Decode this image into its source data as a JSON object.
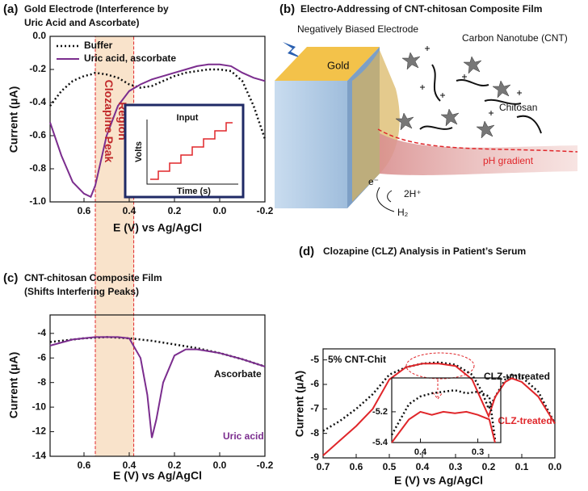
{
  "chart_data": [
    {
      "type": "line",
      "label": "(a)",
      "title": [
        "Gold Electrode (Interference by",
        "Uric Acid and Ascorbate)"
      ],
      "x_label": "E (V) vs Ag/AgCl",
      "y_label": "Current (μA)",
      "xlim": [
        0.75,
        -0.2
      ],
      "xticks": [
        0.6,
        0.4,
        0.2,
        {
          "value": 0,
          "label": "0.0"
        },
        -0.2
      ],
      "ylim": [
        -1.0,
        0.0
      ],
      "yticks": [
        {
          "value": 0,
          "label": "0.0"
        },
        -0.2,
        -0.4,
        -0.6,
        -0.8,
        {
          "value": -1,
          "label": "-1.0"
        }
      ],
      "legend": "upper left",
      "highlight_xrange": [
        0.55,
        0.38
      ],
      "annotation": [
        "Clozapine Peak",
        "Region"
      ],
      "inset": {
        "title": "Input",
        "y_label": "Volts",
        "x_label": "Time (s)"
      },
      "series": [
        {
          "name": "Buffer",
          "color": "#111111",
          "linestyle": "dotted",
          "x": [
            0.75,
            0.7,
            0.65,
            0.6,
            0.57,
            0.55,
            0.5,
            0.45,
            0.4,
            0.35,
            0.3,
            0.25,
            0.2,
            0.15,
            0.1,
            0.05,
            0.0,
            -0.05,
            -0.1,
            -0.15,
            -0.2
          ],
          "values": [
            -0.42,
            -0.33,
            -0.27,
            -0.24,
            -0.23,
            -0.22,
            -0.23,
            -0.25,
            -0.29,
            -0.31,
            -0.3,
            -0.27,
            -0.24,
            -0.22,
            -0.21,
            -0.2,
            -0.2,
            -0.21,
            -0.27,
            -0.42,
            -0.62
          ]
        },
        {
          "name": "Uric acid, ascorbate",
          "color": "#7b2d8e",
          "linestyle": "solid",
          "x": [
            0.75,
            0.7,
            0.65,
            0.6,
            0.57,
            0.55,
            0.5,
            0.45,
            0.4,
            0.35,
            0.3,
            0.25,
            0.2,
            0.15,
            0.1,
            0.05,
            0.0,
            -0.05,
            -0.1,
            -0.15,
            -0.2
          ],
          "values": [
            -0.52,
            -0.72,
            -0.88,
            -0.95,
            -0.97,
            -0.9,
            -0.6,
            -0.42,
            -0.33,
            -0.29,
            -0.26,
            -0.24,
            -0.22,
            -0.2,
            -0.18,
            -0.17,
            -0.17,
            -0.18,
            -0.22,
            -0.25,
            -0.27
          ]
        }
      ]
    },
    {
      "type": "line",
      "label": "(c)",
      "title": [
        "CNT-chitosan Composite Film",
        "(Shifts Interfering Peaks)"
      ],
      "x_label": "E (V) vs Ag/AgCl",
      "y_label": "Current (μA)",
      "xlim": [
        0.75,
        -0.2
      ],
      "xticks": [
        0.6,
        0.4,
        0.2,
        {
          "value": 0,
          "label": "0.0"
        },
        -0.2
      ],
      "ylim": [
        -14,
        -2.5
      ],
      "yticks": [
        -4,
        -6,
        -8,
        -10,
        -12,
        -14
      ],
      "series": [
        {
          "name": "Ascorbate",
          "color": "#111111",
          "linestyle": "dotted",
          "x": [
            0.75,
            0.6,
            0.5,
            0.4,
            0.3,
            0.2,
            0.1,
            0.0,
            -0.1,
            -0.2
          ],
          "values": [
            -4.7,
            -4.4,
            -4.3,
            -4.4,
            -4.6,
            -4.9,
            -5.2,
            -5.6,
            -6.1,
            -6.7
          ]
        },
        {
          "name": "Uric acid",
          "color": "#7b2d8e",
          "linestyle": "solid",
          "x": [
            0.75,
            0.65,
            0.55,
            0.45,
            0.4,
            0.35,
            0.32,
            0.3,
            0.28,
            0.25,
            0.2,
            0.15,
            0.1,
            0.0,
            -0.1,
            -0.2
          ],
          "values": [
            -5.0,
            -4.5,
            -4.3,
            -4.3,
            -4.4,
            -6.0,
            -9.0,
            -12.5,
            -11.0,
            -8.0,
            -5.8,
            -5.3,
            -5.3,
            -5.6,
            -6.1,
            -6.7
          ]
        }
      ]
    },
    {
      "type": "line",
      "label": "(d)",
      "title": [
        "Clozapine (CLZ) Analysis in Patient’s Serum"
      ],
      "x_label": "E (V) vs Ag/AgCl",
      "y_label": "Current (μA)",
      "annotation": "5% CNT-Chit",
      "xlim": [
        0.7,
        0.0
      ],
      "xticks": [
        0.7,
        0.6,
        0.5,
        0.4,
        0.3,
        0.2,
        0.1,
        {
          "value": 0,
          "label": "0.0"
        }
      ],
      "ylim": [
        -9,
        -4.55
      ],
      "yticks": [
        -5,
        -6,
        -7,
        -8,
        -9
      ],
      "series": [
        {
          "name": "CLZ-untreated",
          "color": "#111111",
          "linestyle": "dotted",
          "x": [
            0.7,
            0.65,
            0.6,
            0.55,
            0.5,
            0.45,
            0.4,
            0.35,
            0.3,
            0.25,
            0.22,
            0.2,
            0.18,
            0.15,
            0.13,
            0.1,
            0.05,
            0.0
          ],
          "values": [
            -7.9,
            -7.5,
            -7.0,
            -6.4,
            -5.6,
            -5.3,
            -5.15,
            -5.1,
            -5.2,
            -5.6,
            -6.3,
            -7.0,
            -6.5,
            -5.8,
            -5.6,
            -5.7,
            -6.3,
            -7.6
          ]
        },
        {
          "name": "CLZ-treated",
          "color": "#e0262a",
          "linestyle": "solid",
          "x": [
            0.7,
            0.65,
            0.6,
            0.55,
            0.5,
            0.45,
            0.4,
            0.35,
            0.3,
            0.25,
            0.22,
            0.2,
            0.18,
            0.15,
            0.13,
            0.1,
            0.05,
            0.0
          ],
          "values": [
            -8.9,
            -8.3,
            -7.7,
            -7.0,
            -5.8,
            -5.3,
            -5.15,
            -5.15,
            -5.25,
            -5.8,
            -6.7,
            -7.3,
            -6.5,
            -5.9,
            -5.75,
            -5.9,
            -6.5,
            -7.6
          ]
        }
      ]
    },
    {
      "type": "line",
      "xlim": [
        0.45,
        0.26
      ],
      "xticks": [
        0.4,
        0.3
      ],
      "ylim": [
        -5.4,
        -4.98
      ],
      "yticks": [
        -5.2,
        -5.4
      ],
      "series": [
        {
          "color": "#111111",
          "linestyle": "dotted",
          "x": [
            0.45,
            0.42,
            0.4,
            0.38,
            0.36,
            0.34,
            0.32,
            0.3,
            0.28,
            0.27
          ],
          "values": [
            -5.35,
            -5.15,
            -5.1,
            -5.08,
            -5.07,
            -5.06,
            -5.08,
            -5.07,
            -5.1,
            -5.38
          ]
        },
        {
          "color": "#e0262a",
          "linestyle": "solid",
          "x": [
            0.45,
            0.42,
            0.4,
            0.38,
            0.36,
            0.34,
            0.32,
            0.3,
            0.28,
            0.27
          ],
          "values": [
            -5.4,
            -5.25,
            -5.2,
            -5.22,
            -5.2,
            -5.21,
            -5.2,
            -5.22,
            -5.25,
            -5.4
          ]
        }
      ]
    }
  ],
  "diagram": {
    "label": "(b)",
    "title": "Electro-Addressing of CNT-chitosan Composite Film",
    "electrode": "Negatively Biased Electrode",
    "gold": "Gold",
    "cnt": "Carbon Nanotube (CNT)",
    "chitosan": "Chitosan",
    "gradient": "pH gradient",
    "electron": "e⁻",
    "protons": "2H⁺",
    "hydrogen": "H₂"
  }
}
